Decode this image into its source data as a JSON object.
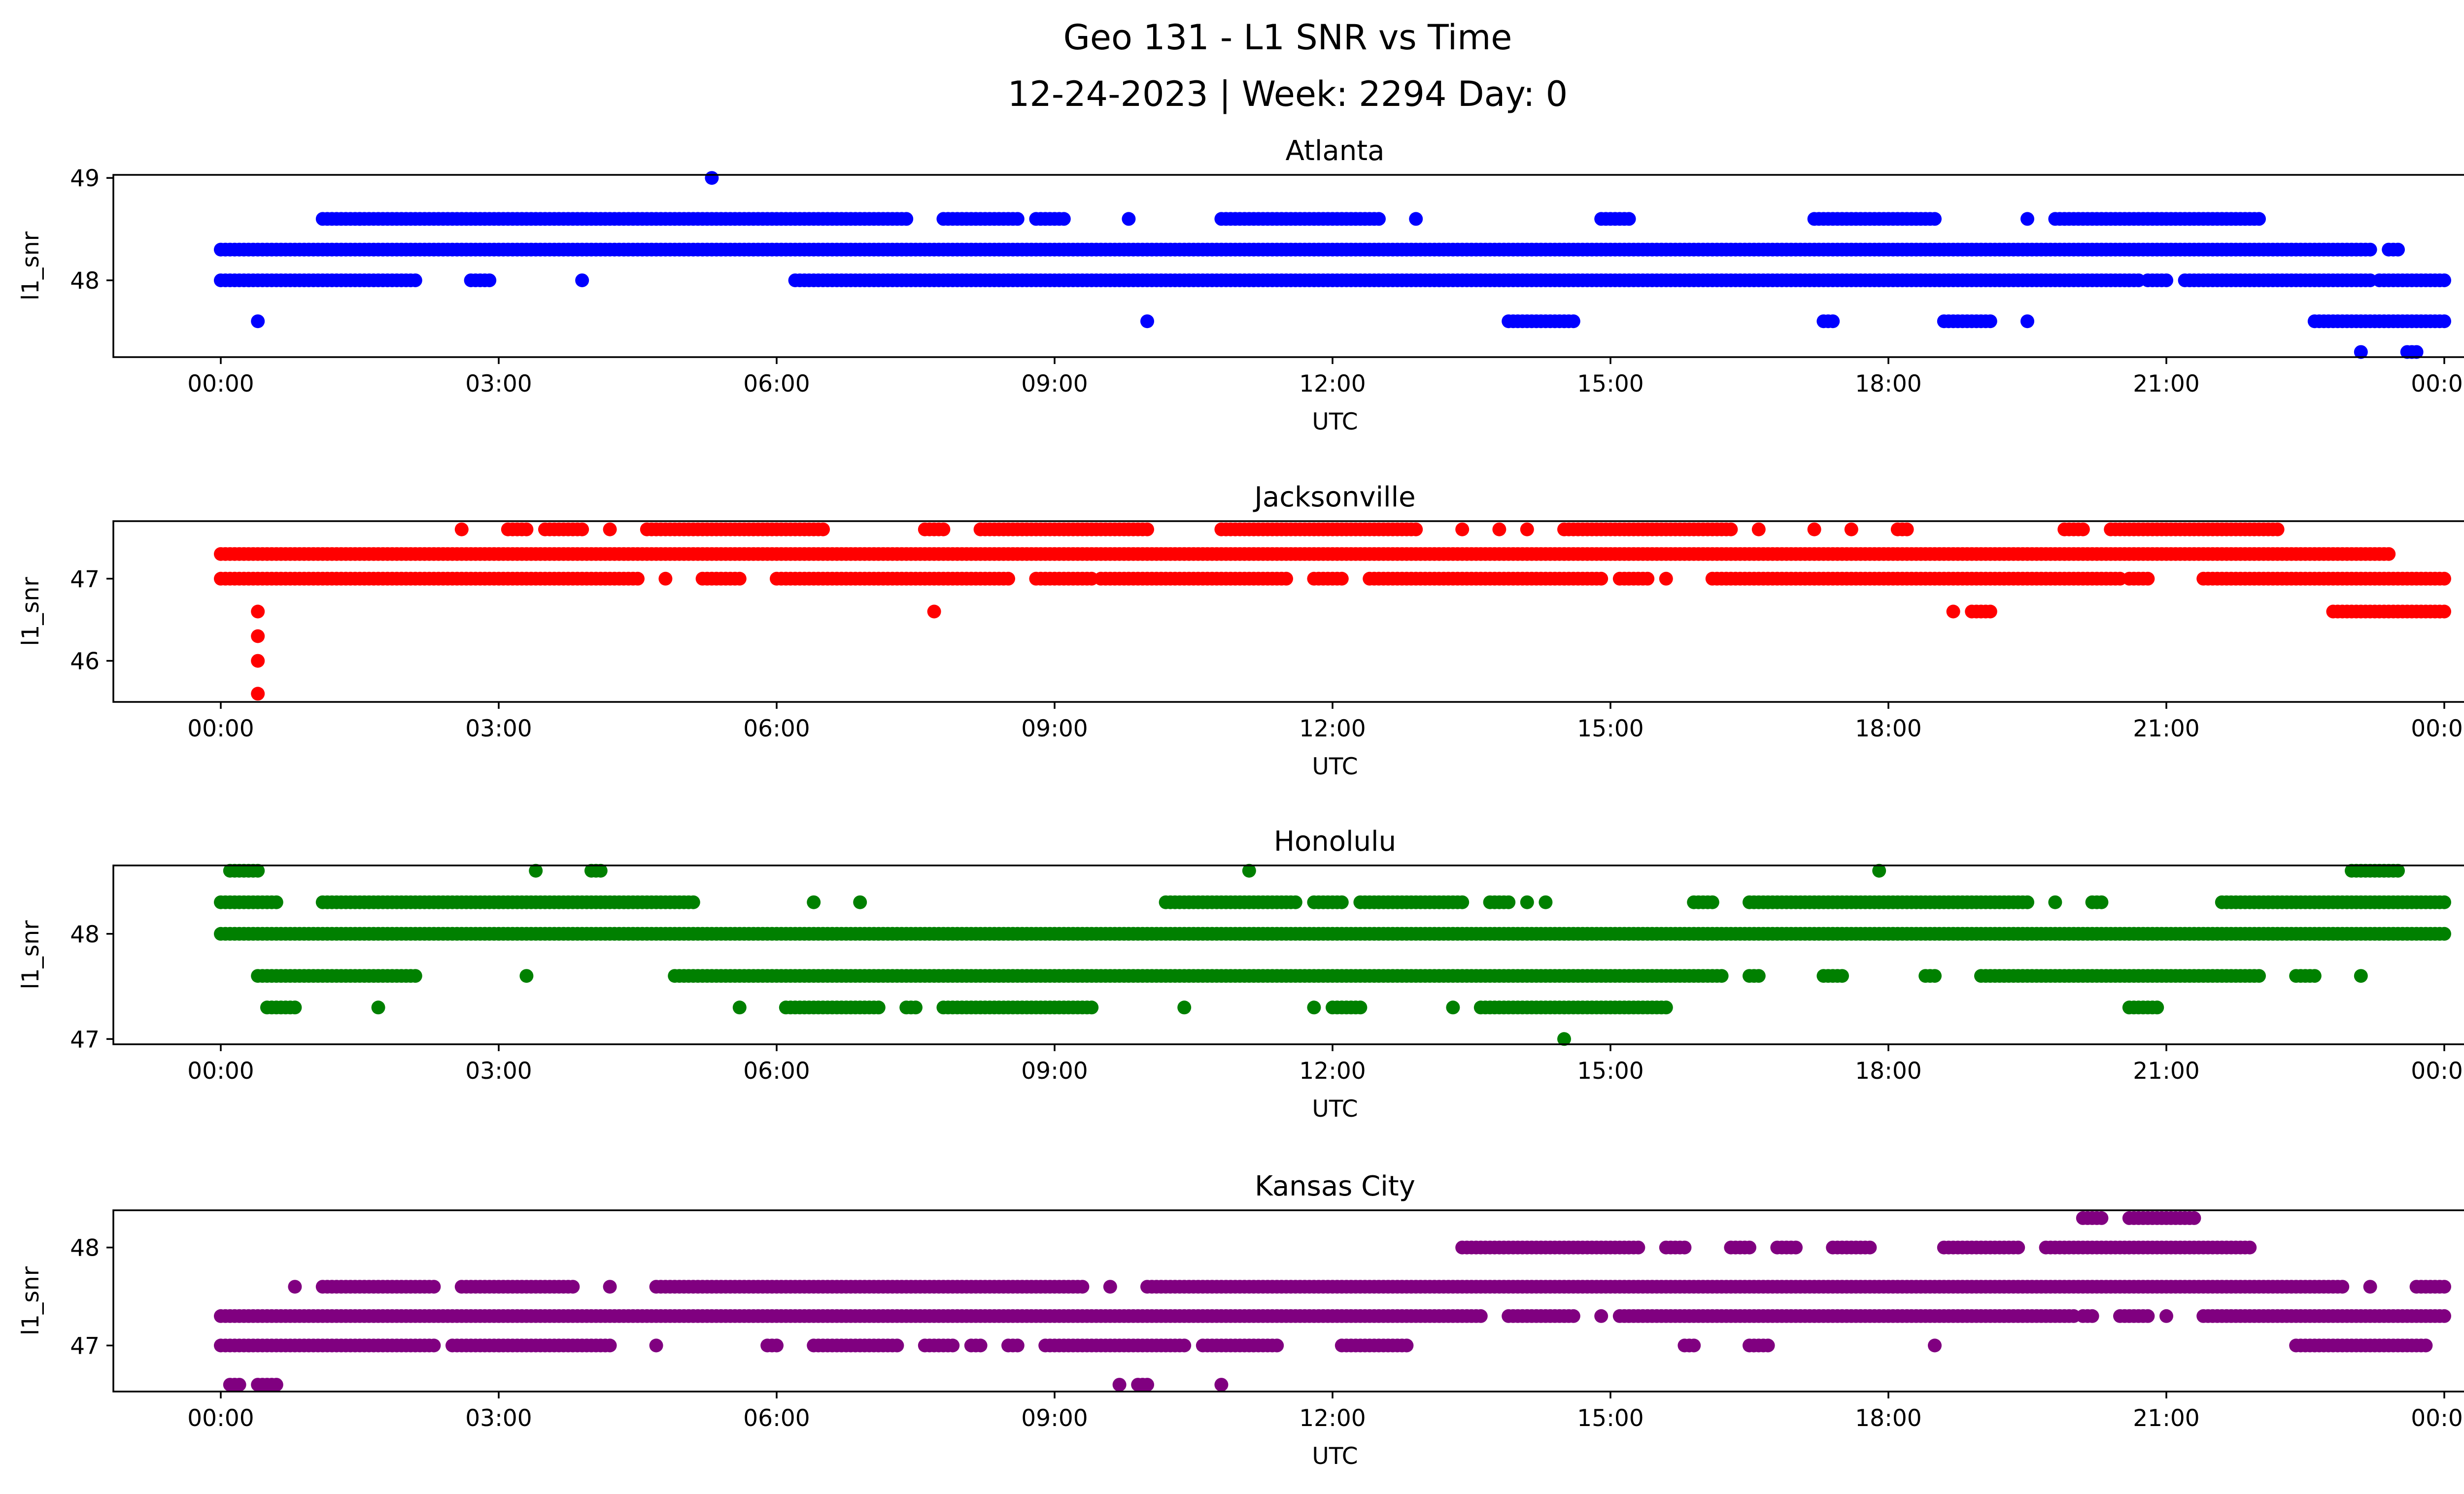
{
  "title": "Geo 131 - L1 SNR vs Time",
  "subtitle": "12-24-2023 | Week: 2294 Day: 0",
  "chart_data": [
    {
      "type": "scatter",
      "title": "Atlanta",
      "xlabel": "UTC",
      "ylabel": "l1_snr",
      "xlim": [
        "00:00",
        "00:00"
      ],
      "xticks": [
        "00:00",
        "03:00",
        "06:00",
        "09:00",
        "12:00",
        "15:00",
        "18:00",
        "21:00",
        "00:00"
      ],
      "yticks": [
        48,
        49
      ],
      "ylim": [
        47.25,
        49.03
      ],
      "color": "#0000ff",
      "levels": [
        {
          "y": 49.0,
          "segments": [
            [
              "05:18",
              "05:18"
            ]
          ]
        },
        {
          "y": 48.6,
          "segments": [
            [
              "01:06",
              "01:30"
            ],
            [
              "01:30",
              "07:24"
            ],
            [
              "07:48",
              "08:36"
            ],
            [
              "08:48",
              "09:06"
            ],
            [
              "09:48",
              "09:48"
            ],
            [
              "10:48",
              "12:30"
            ],
            [
              "12:54",
              "12:54"
            ],
            [
              "14:54",
              "15:12"
            ],
            [
              "17:12",
              "18:30"
            ],
            [
              "19:30",
              "19:30"
            ],
            [
              "19:48",
              "22:00"
            ]
          ]
        },
        {
          "y": 48.3,
          "segments": [
            [
              "00:00",
              "23:12"
            ],
            [
              "23:24",
              "23:30"
            ]
          ]
        },
        {
          "y": 48.0,
          "segments": [
            [
              "00:00",
              "02:06"
            ],
            [
              "02:42",
              "02:54"
            ],
            [
              "03:54",
              "03:54"
            ],
            [
              "06:12",
              "20:42"
            ],
            [
              "20:48",
              "21:00"
            ],
            [
              "21:12",
              "23:12"
            ],
            [
              "23:18",
              "24:00"
            ]
          ]
        },
        {
          "y": 47.6,
          "segments": [
            [
              "00:24",
              "00:24"
            ],
            [
              "10:00",
              "10:00"
            ],
            [
              "13:54",
              "14:36"
            ],
            [
              "17:18",
              "17:24"
            ],
            [
              "18:36",
              "19:06"
            ],
            [
              "19:30",
              "19:30"
            ],
            [
              "22:36",
              "24:00"
            ]
          ]
        },
        {
          "y": 47.3,
          "segments": [
            [
              "23:06",
              "23:06"
            ],
            [
              "23:36",
              "23:42"
            ]
          ]
        }
      ]
    },
    {
      "type": "scatter",
      "title": "Jacksonville",
      "xlabel": "UTC",
      "ylabel": "l1_snr",
      "xlim": [
        "00:00",
        "00:00"
      ],
      "xticks": [
        "00:00",
        "03:00",
        "06:00",
        "09:00",
        "12:00",
        "15:00",
        "18:00",
        "21:00",
        "00:00"
      ],
      "yticks": [
        46,
        47
      ],
      "ylim": [
        45.5,
        47.7
      ],
      "color": "#ff0000",
      "levels": [
        {
          "y": 47.6,
          "segments": [
            [
              "02:36",
              "02:36"
            ],
            [
              "03:06",
              "03:18"
            ],
            [
              "03:30",
              "03:54"
            ],
            [
              "04:12",
              "04:12"
            ],
            [
              "04:36",
              "06:30"
            ],
            [
              "07:36",
              "07:48"
            ],
            [
              "08:12",
              "10:00"
            ],
            [
              "10:48",
              "12:54"
            ],
            [
              "13:24",
              "13:24"
            ],
            [
              "13:48",
              "13:48"
            ],
            [
              "14:06",
              "14:06"
            ],
            [
              "14:30",
              "16:18"
            ],
            [
              "16:36",
              "16:36"
            ],
            [
              "17:12",
              "17:12"
            ],
            [
              "17:36",
              "17:36"
            ],
            [
              "18:06",
              "18:12"
            ],
            [
              "19:54",
              "20:06"
            ],
            [
              "20:24",
              "22:12"
            ]
          ]
        },
        {
          "y": 47.3,
          "segments": [
            [
              "00:00",
              "23:24"
            ]
          ]
        },
        {
          "y": 47.0,
          "segments": [
            [
              "00:00",
              "04:30"
            ],
            [
              "04:48",
              "04:48"
            ],
            [
              "05:12",
              "05:36"
            ],
            [
              "06:00",
              "08:30"
            ],
            [
              "08:48",
              "09:24"
            ],
            [
              "09:30",
              "11:30"
            ],
            [
              "11:48",
              "12:06"
            ],
            [
              "12:24",
              "14:54"
            ],
            [
              "15:06",
              "15:24"
            ],
            [
              "15:36",
              "15:36"
            ],
            [
              "16:06",
              "20:30"
            ],
            [
              "20:36",
              "20:48"
            ],
            [
              "21:24",
              "24:00"
            ]
          ]
        },
        {
          "y": 46.6,
          "segments": [
            [
              "00:24",
              "00:24"
            ],
            [
              "07:42",
              "07:42"
            ],
            [
              "18:42",
              "18:42"
            ],
            [
              "18:54",
              "19:06"
            ],
            [
              "22:48",
              "24:00"
            ]
          ]
        },
        {
          "y": 46.3,
          "segments": [
            [
              "00:24",
              "00:24"
            ]
          ]
        },
        {
          "y": 46.0,
          "segments": [
            [
              "00:24",
              "00:24"
            ]
          ]
        },
        {
          "y": 45.6,
          "segments": [
            [
              "00:24",
              "00:24"
            ]
          ]
        }
      ]
    },
    {
      "type": "scatter",
      "title": "Honolulu",
      "xlabel": "UTC",
      "ylabel": "l1_snr",
      "xlim": [
        "00:00",
        "00:00"
      ],
      "xticks": [
        "00:00",
        "03:00",
        "06:00",
        "09:00",
        "12:00",
        "15:00",
        "18:00",
        "21:00",
        "00:00"
      ],
      "yticks": [
        47,
        48
      ],
      "ylim": [
        46.95,
        48.65
      ],
      "color": "#008000",
      "levels": [
        {
          "y": 48.6,
          "segments": [
            [
              "00:06",
              "00:24"
            ],
            [
              "03:24",
              "03:24"
            ],
            [
              "04:00",
              "04:06"
            ],
            [
              "11:06",
              "11:06"
            ],
            [
              "17:54",
              "17:54"
            ],
            [
              "23:00",
              "23:30"
            ]
          ]
        },
        {
          "y": 48.3,
          "segments": [
            [
              "00:00",
              "00:36"
            ],
            [
              "01:06",
              "05:06"
            ],
            [
              "06:24",
              "06:24"
            ],
            [
              "06:54",
              "06:54"
            ],
            [
              "10:12",
              "11:36"
            ],
            [
              "11:48",
              "12:06"
            ],
            [
              "12:18",
              "13:24"
            ],
            [
              "13:42",
              "13:54"
            ],
            [
              "14:06",
              "14:06"
            ],
            [
              "14:18",
              "14:18"
            ],
            [
              "15:54",
              "16:06"
            ],
            [
              "16:30",
              "19:30"
            ],
            [
              "19:48",
              "19:48"
            ],
            [
              "20:12",
              "20:18"
            ],
            [
              "21:36",
              "24:00"
            ]
          ]
        },
        {
          "y": 48.0,
          "segments": [
            [
              "00:00",
              "24:00"
            ]
          ]
        },
        {
          "y": 47.6,
          "segments": [
            [
              "00:24",
              "02:06"
            ],
            [
              "03:18",
              "03:18"
            ],
            [
              "04:54",
              "16:12"
            ],
            [
              "16:30",
              "16:36"
            ],
            [
              "17:18",
              "17:30"
            ],
            [
              "18:24",
              "18:30"
            ],
            [
              "19:00",
              "22:00"
            ],
            [
              "22:24",
              "22:36"
            ],
            [
              "23:06",
              "23:06"
            ]
          ]
        },
        {
          "y": 47.3,
          "segments": [
            [
              "00:30",
              "00:48"
            ],
            [
              "01:42",
              "01:42"
            ],
            [
              "05:36",
              "05:36"
            ],
            [
              "06:06",
              "07:06"
            ],
            [
              "07:24",
              "07:30"
            ],
            [
              "07:48",
              "09:24"
            ],
            [
              "10:24",
              "10:24"
            ],
            [
              "11:48",
              "11:48"
            ],
            [
              "12:00",
              "12:18"
            ],
            [
              "13:18",
              "13:18"
            ],
            [
              "13:36",
              "15:36"
            ],
            [
              "20:36",
              "20:54"
            ]
          ]
        },
        {
          "y": 47.0,
          "segments": [
            [
              "14:30",
              "14:30"
            ]
          ]
        }
      ]
    },
    {
      "type": "scatter",
      "title": "Kansas City",
      "xlabel": "UTC",
      "ylabel": "l1_snr",
      "xlim": [
        "00:00",
        "00:00"
      ],
      "xticks": [
        "00:00",
        "03:00",
        "06:00",
        "09:00",
        "12:00",
        "15:00",
        "18:00",
        "21:00",
        "00:00"
      ],
      "yticks": [
        47,
        48
      ],
      "ylim": [
        46.53,
        48.38
      ],
      "color": "#800080",
      "levels": [
        {
          "y": 48.3,
          "segments": [
            [
              "20:06",
              "20:18"
            ],
            [
              "20:36",
              "21:18"
            ]
          ]
        },
        {
          "y": 48.0,
          "segments": [
            [
              "13:24",
              "15:18"
            ],
            [
              "15:36",
              "15:48"
            ],
            [
              "16:18",
              "16:30"
            ],
            [
              "16:48",
              "17:00"
            ],
            [
              "17:24",
              "17:48"
            ],
            [
              "18:36",
              "19:24"
            ],
            [
              "19:42",
              "21:54"
            ]
          ]
        },
        {
          "y": 47.6,
          "segments": [
            [
              "00:48",
              "00:48"
            ],
            [
              "01:06",
              "02:18"
            ],
            [
              "02:36",
              "03:48"
            ],
            [
              "04:12",
              "04:12"
            ],
            [
              "04:42",
              "09:18"
            ],
            [
              "09:36",
              "09:36"
            ],
            [
              "10:00",
              "22:54"
            ],
            [
              "23:12",
              "23:12"
            ],
            [
              "23:42",
              "24:00"
            ]
          ]
        },
        {
          "y": 47.3,
          "segments": [
            [
              "00:00",
              "13:36"
            ],
            [
              "13:54",
              "14:36"
            ],
            [
              "14:54",
              "14:54"
            ],
            [
              "15:06",
              "20:00"
            ],
            [
              "20:06",
              "20:12"
            ],
            [
              "20:30",
              "20:48"
            ],
            [
              "21:00",
              "21:00"
            ],
            [
              "21:24",
              "24:00"
            ]
          ]
        },
        {
          "y": 47.0,
          "segments": [
            [
              "00:00",
              "02:18"
            ],
            [
              "02:30",
              "04:12"
            ],
            [
              "04:42",
              "04:42"
            ],
            [
              "05:54",
              "06:00"
            ],
            [
              "06:24",
              "07:18"
            ],
            [
              "07:36",
              "07:54"
            ],
            [
              "08:06",
              "08:12"
            ],
            [
              "08:30",
              "08:36"
            ],
            [
              "08:54",
              "10:24"
            ],
            [
              "10:36",
              "11:24"
            ],
            [
              "12:06",
              "12:48"
            ],
            [
              "15:48",
              "15:54"
            ],
            [
              "16:30",
              "16:42"
            ],
            [
              "18:30",
              "18:30"
            ],
            [
              "22:24",
              "23:48"
            ]
          ]
        },
        {
          "y": 46.6,
          "segments": [
            [
              "00:06",
              "00:12"
            ],
            [
              "00:24",
              "00:36"
            ],
            [
              "09:42",
              "09:42"
            ],
            [
              "09:54",
              "10:00"
            ],
            [
              "10:48",
              "10:48"
            ]
          ]
        }
      ]
    }
  ]
}
